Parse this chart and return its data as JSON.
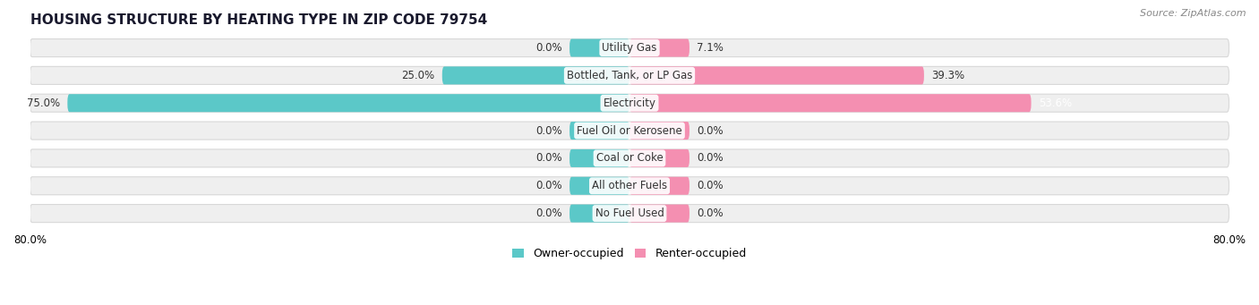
{
  "title": "HOUSING STRUCTURE BY HEATING TYPE IN ZIP CODE 79754",
  "source": "Source: ZipAtlas.com",
  "categories": [
    "Utility Gas",
    "Bottled, Tank, or LP Gas",
    "Electricity",
    "Fuel Oil or Kerosene",
    "Coal or Coke",
    "All other Fuels",
    "No Fuel Used"
  ],
  "owner_values": [
    0.0,
    25.0,
    75.0,
    0.0,
    0.0,
    0.0,
    0.0
  ],
  "renter_values": [
    7.1,
    39.3,
    53.6,
    0.0,
    0.0,
    0.0,
    0.0
  ],
  "owner_color": "#5bc8c8",
  "renter_color": "#f48fb1",
  "bar_bg_color": "#efefef",
  "bar_edge_color": "#d8d8d8",
  "x_min": -80.0,
  "x_max": 80.0,
  "x_tick_labels": [
    "80.0%",
    "80.0%"
  ],
  "min_bar_size": 8.0,
  "title_fontsize": 11,
  "source_fontsize": 8,
  "label_fontsize": 8.5,
  "legend_fontsize": 9
}
